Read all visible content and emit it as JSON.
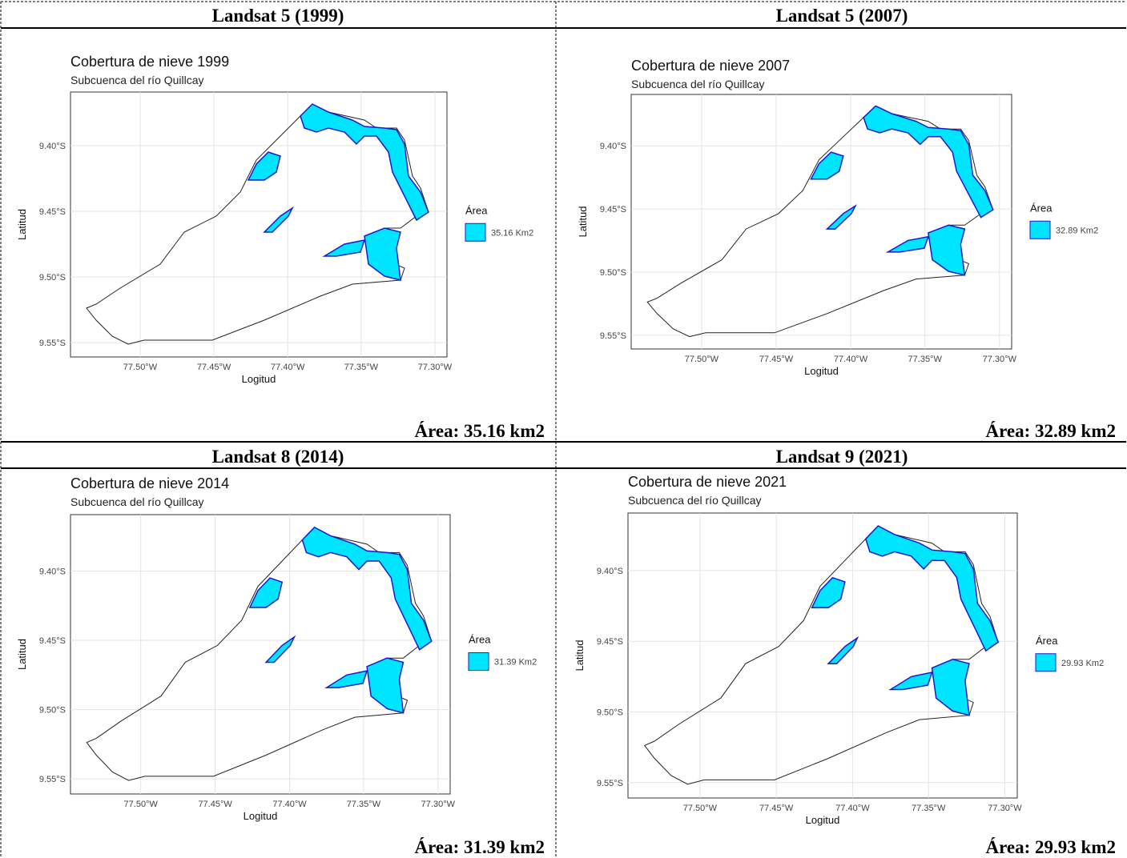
{
  "panels": [
    {
      "header": "Landsat 5 (1999)",
      "map": {
        "title": "Cobertura de nieve 1999",
        "subtitle": "Subcuenca del río Quillcay",
        "y_ticks": [
          "9.40°S",
          "9.45°S",
          "9.50°S",
          "9.55°S"
        ],
        "x_ticks": [
          "77.50°W",
          "77.45°W",
          "77.40°W",
          "77.35°W",
          "77.30°W"
        ],
        "x_label": "Logitud",
        "y_label": "Latitud",
        "legend_title": "Área",
        "legend_label": "35.16 Km2"
      },
      "caption": "Área: 35.16 km2"
    },
    {
      "header": "Landsat 5 (2007)",
      "map": {
        "title": "Cobertura de nieve 2007",
        "subtitle": "Subcuenca del río Quillcay",
        "y_ticks": [
          "9.40°S",
          "9.45°S",
          "9.50°S",
          "9.55°S"
        ],
        "x_ticks": [
          "77.50°W",
          "77.45°W",
          "77.40°W",
          "77.35°W",
          "77.30°W"
        ],
        "x_label": "Logitud",
        "y_label": "Latitud",
        "legend_title": "Área",
        "legend_label": "32.89 Km2"
      },
      "caption": "Área: 32.89 km2"
    },
    {
      "header": "Landsat 8 (2014)",
      "map": {
        "title": "Cobertura de nieve 2014",
        "subtitle": "Subcuenca del río Quillcay",
        "y_ticks": [
          "9.40°S",
          "9.45°S",
          "9.50°S",
          "9.55°S"
        ],
        "x_ticks": [
          "77.50°W",
          "77.45°W",
          "77.40°W",
          "77.35°W",
          "77.30°W"
        ],
        "x_label": "Logitud",
        "y_label": "Latitud",
        "legend_title": "Área",
        "legend_label": "31.39 Km2"
      },
      "caption": "Área: 31.39 km2"
    },
    {
      "header": "Landsat 9 (2021)",
      "map": {
        "title": "Cobertura de nieve 2021",
        "subtitle": "Subcuenca del río Quillcay",
        "y_ticks": [
          "9.40°S",
          "9.45°S",
          "9.50°S",
          "9.55°S"
        ],
        "x_ticks": [
          "77.50°W",
          "77.45°W",
          "77.40°W",
          "77.35°W",
          "77.30°W"
        ],
        "x_label": "Logitud",
        "y_label": "Latitud",
        "legend_title": "Área",
        "legend_label": "29.93 Km2"
      },
      "caption": "Área: 29.93 km2"
    }
  ]
}
